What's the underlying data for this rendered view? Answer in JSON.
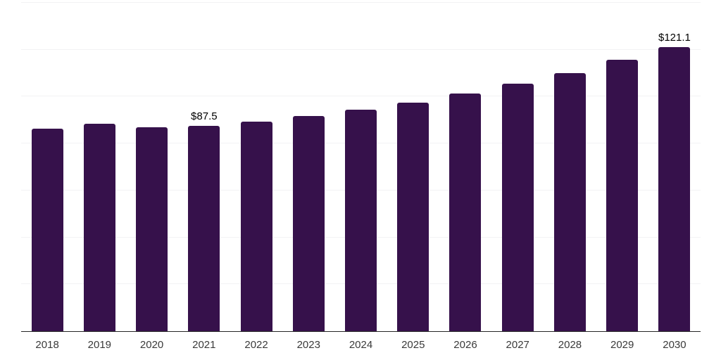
{
  "chart_data": {
    "type": "bar",
    "title": "",
    "xlabel": "",
    "ylabel": "",
    "categories": [
      "2018",
      "2019",
      "2020",
      "2021",
      "2022",
      "2023",
      "2024",
      "2025",
      "2026",
      "2027",
      "2028",
      "2029",
      "2030"
    ],
    "values": [
      86.4,
      88.5,
      86.8,
      87.5,
      89.4,
      91.8,
      94.5,
      97.5,
      101.3,
      105.5,
      110.0,
      115.7,
      121.1
    ],
    "point_labels": [
      "",
      "",
      "",
      "$87.5",
      "",
      "",
      "",
      "",
      "",
      "",
      "",
      "",
      "$121.1"
    ],
    "ylim": [
      0,
      140
    ],
    "gridline_step": 20,
    "grid": "horizontal-only",
    "y_tick_labels_visible": false,
    "legend": "none"
  },
  "colors": {
    "bar": "#36114B",
    "gridline": "#F2F2F4",
    "axis_line": "#262626",
    "x_tick_label": "#3A3A3A",
    "value_label": "#000000",
    "background": "#FFFFFF"
  }
}
